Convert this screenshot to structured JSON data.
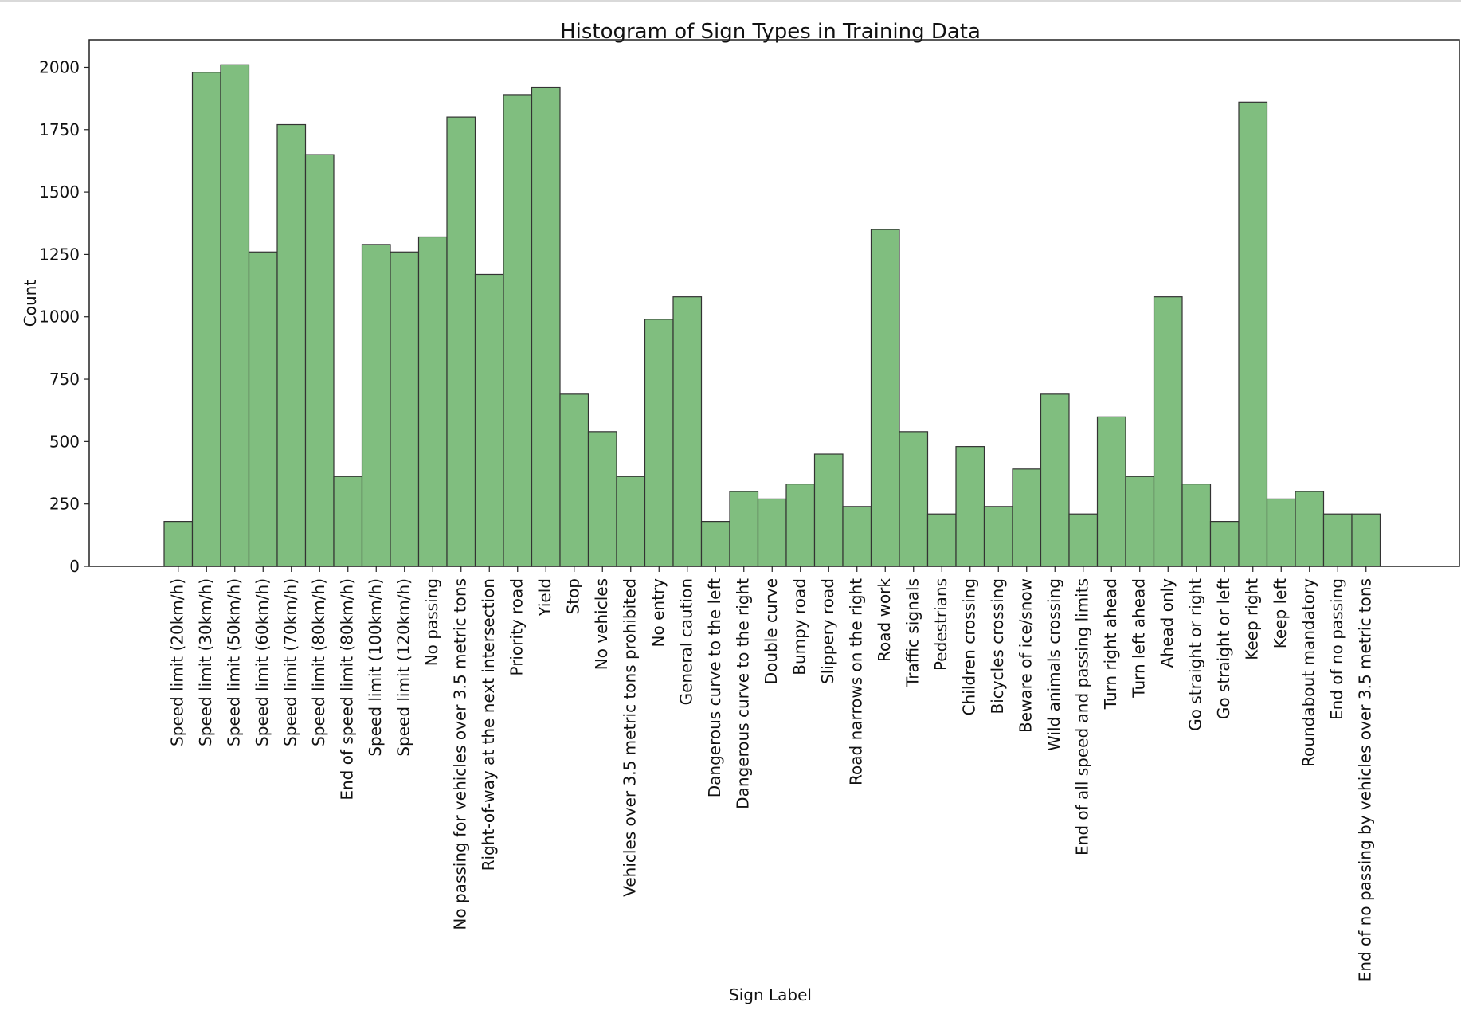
{
  "chart_data": {
    "type": "bar",
    "title": "Histogram of Sign Types in Training Data",
    "xlabel": "Sign Label",
    "ylabel": "Count",
    "ylim": [
      0,
      2110
    ],
    "yticks": [
      0,
      250,
      500,
      750,
      1000,
      1250,
      1500,
      1750,
      2000
    ],
    "grid": false,
    "categories": [
      "Speed limit (20km/h)",
      "Speed limit (30km/h)",
      "Speed limit (50km/h)",
      "Speed limit (60km/h)",
      "Speed limit (70km/h)",
      "Speed limit (80km/h)",
      "End of speed limit (80km/h)",
      "Speed limit (100km/h)",
      "Speed limit (120km/h)",
      "No passing",
      "No passing for vehicles over 3.5 metric tons",
      "Right-of-way at the next intersection",
      "Priority road",
      "Yield",
      "Stop",
      "No vehicles",
      "Vehicles over 3.5 metric tons prohibited",
      "No entry",
      "General caution",
      "Dangerous curve to the left",
      "Dangerous curve to the right",
      "Double curve",
      "Bumpy road",
      "Slippery road",
      "Road narrows on the right",
      "Road work",
      "Traffic signals",
      "Pedestrians",
      "Children crossing",
      "Bicycles crossing",
      "Beware of ice/snow",
      "Wild animals crossing",
      "End of all speed and passing limits",
      "Turn right ahead",
      "Turn left ahead",
      "Ahead only",
      "Go straight or right",
      "Go straight or left",
      "Keep right",
      "Keep left",
      "Roundabout mandatory",
      "End of no passing",
      "End of no passing by vehicles over 3.5 metric tons"
    ],
    "values": [
      180,
      1980,
      2010,
      1260,
      1770,
      1650,
      360,
      1290,
      1260,
      1320,
      1800,
      1170,
      1890,
      1920,
      690,
      540,
      360,
      990,
      1080,
      180,
      300,
      270,
      330,
      450,
      240,
      1350,
      540,
      210,
      480,
      240,
      390,
      690,
      210,
      599,
      360,
      1080,
      330,
      180,
      1860,
      270,
      300,
      210,
      210
    ],
    "colors": {
      "bar_fill": "#80be7f",
      "bar_edge": "#333333",
      "axis": "#222222"
    }
  }
}
